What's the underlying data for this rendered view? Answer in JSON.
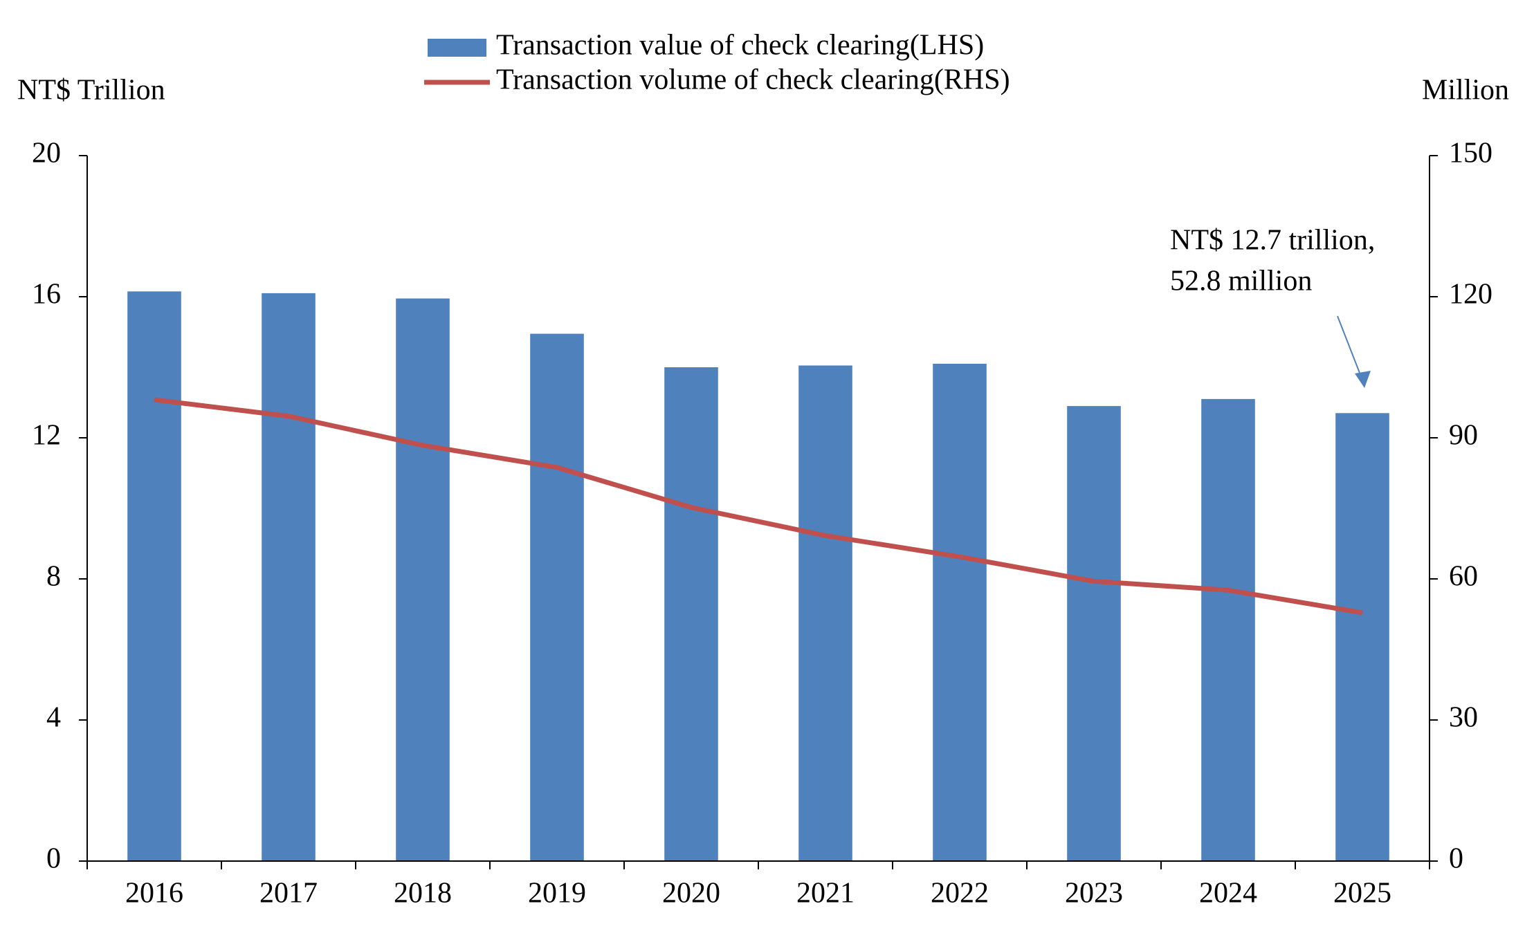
{
  "chart_data": {
    "type": "bar-line",
    "y_label": "NT$ Trillion",
    "y2_label": "Million",
    "categories": [
      "2016",
      "2017",
      "2018",
      "2019",
      "2020",
      "2021",
      "2022",
      "2023",
      "2024",
      "2025"
    ],
    "series": [
      {
        "name": "Transaction value of check clearing(LHS)",
        "type": "bar",
        "color": "#4f81bd",
        "values": [
          16.15,
          16.1,
          15.95,
          14.95,
          14.0,
          14.05,
          14.1,
          12.9,
          13.1,
          12.7
        ]
      },
      {
        "name": "Transaction volume of check clearing(RHS)",
        "type": "line",
        "axis": "y2",
        "color": "#c0504d",
        "values": [
          98.1,
          94.6,
          88.4,
          83.7,
          75.2,
          69.2,
          64.7,
          59.5,
          57.6,
          52.8
        ]
      }
    ],
    "ylim": [
      0,
      20
    ],
    "yticks": [
      0,
      4,
      8,
      12,
      16,
      20
    ],
    "y2lim": [
      0,
      150
    ],
    "y2ticks": [
      0,
      30,
      60,
      90,
      120,
      150
    ],
    "annotation": [
      "NT$ 12.7 trillion,",
      "52.8 million"
    ]
  }
}
